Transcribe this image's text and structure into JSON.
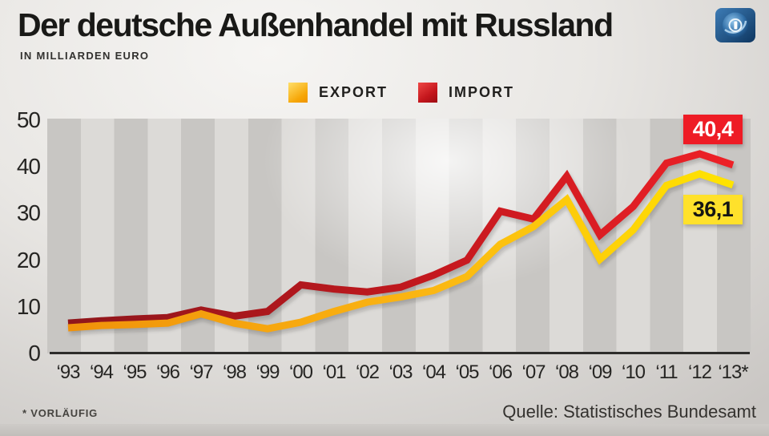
{
  "header": {
    "title": "Der deutsche Außenhandel mit Russland",
    "subtitle": "IN MILLIARDEN EURO",
    "logo": "tagesschau-globe-logo"
  },
  "legend": {
    "export_label": "EXPORT",
    "import_label": "IMPORT",
    "export_color": "#fbb713",
    "import_color": "#d6161c"
  },
  "chart_data": {
    "type": "line",
    "title": "Der deutsche Außenhandel mit Russland",
    "ylabel": "Milliarden Euro",
    "ylim": [
      0,
      50
    ],
    "yticks": [
      0,
      10,
      20,
      30,
      40,
      50
    ],
    "grid": "alternating-vertical-stripes",
    "legend_position": "top-center",
    "categories": [
      "‘93",
      "‘94",
      "‘95",
      "‘96",
      "‘97",
      "‘98",
      "‘99",
      "‘00",
      "‘01",
      "‘02",
      "‘03",
      "‘04",
      "‘05",
      "‘06",
      "‘07",
      "‘08",
      "‘09",
      "‘10",
      "‘11",
      "‘12",
      "‘13*"
    ],
    "series": [
      {
        "name": "IMPORT",
        "color_start": "#8f161b",
        "color_mid": "#c4181e",
        "color_end": "#ee2127",
        "values": [
          6.5,
          7.0,
          7.4,
          7.7,
          9.3,
          8.0,
          9.0,
          14.7,
          13.8,
          13.2,
          14.2,
          16.8,
          20.0,
          30.5,
          28.8,
          38.0,
          25.4,
          31.5,
          40.8,
          42.8,
          40.4
        ],
        "end_label": "40,4"
      },
      {
        "name": "EXPORT",
        "color_start": "#f0920a",
        "color_mid": "#fbb713",
        "color_end": "#ffe400",
        "values": [
          5.5,
          6.0,
          6.2,
          6.5,
          8.5,
          6.5,
          5.3,
          6.7,
          9.0,
          11.0,
          12.1,
          13.5,
          16.5,
          23.4,
          27.2,
          33.0,
          20.2,
          26.5,
          36.0,
          38.5,
          36.1
        ],
        "end_label": "36,1"
      }
    ]
  },
  "footer": {
    "footnote": "* VORLÄUFIG",
    "source": "Quelle: Statistisches Bundesamt"
  }
}
